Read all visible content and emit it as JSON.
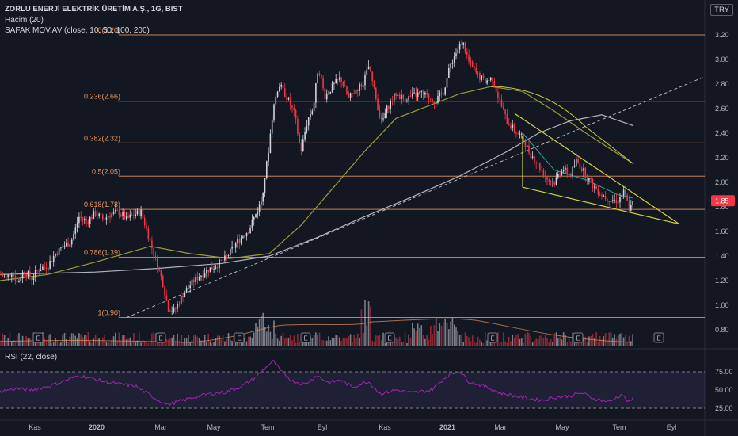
{
  "header": {
    "symbol": "ZORLU ENERJİ ELEKTRİK ÜRETİM A.Ş., 1G, BIST",
    "volume": "Hacim (20)",
    "ma": "SAFAK  MOV.AV (close, 10, 50, 100, 200)"
  },
  "currency": "TRY",
  "rsi_label": "RSI (22, close)",
  "colors": {
    "background": "#131722",
    "up": "#d1d4dc",
    "down": "#f23645",
    "fib": "#e8935c",
    "ma50": "#9b9b3a",
    "ma200": "#b2b5be",
    "ma100_projection": "#c8cc3a",
    "rsi": "#9c27b0",
    "wedge": "#d4d43a",
    "trend": "#b2b5be",
    "price_badge": "#f23645"
  },
  "chart_data": [
    {
      "type": "candlestick",
      "title": "ZORLU ENERJİ ELEKTRİK ÜRETİM A.Ş., 1G, BIST",
      "x_ticks": [
        "Kas",
        "2020",
        "Mar",
        "May",
        "Tem",
        "Eyl",
        "Kas",
        "2021",
        "Mar",
        "May",
        "Tem",
        "Eyl"
      ],
      "y_ticks": [
        "3.20",
        "3.00",
        "2.80",
        "2.60",
        "2.40",
        "2.20",
        "2.00",
        "1.80",
        "1.60",
        "1.40",
        "1.20",
        "1.00",
        "0.80"
      ],
      "ylim": [
        0.72,
        3.28
      ],
      "last_price": "1.85",
      "fib_levels": [
        {
          "label": "0(3.20)",
          "value": 3.2
        },
        {
          "label": "0.236(2.66)",
          "value": 2.66
        },
        {
          "label": "0.382(2.32)",
          "value": 2.32
        },
        {
          "label": "0.5(2.05)",
          "value": 2.05
        },
        {
          "label": "0.618(1.78)",
          "value": 1.78
        },
        {
          "label": "0.786(1.39)",
          "value": 1.39
        },
        {
          "label": "1(0.90)",
          "value": 0.9
        }
      ],
      "price_path": [
        [
          0,
          1.25
        ],
        [
          8,
          1.22
        ],
        [
          15,
          1.27
        ],
        [
          22,
          1.18
        ],
        [
          30,
          1.28
        ],
        [
          40,
          1.22
        ],
        [
          50,
          1.3
        ],
        [
          60,
          1.32
        ],
        [
          70,
          1.42
        ],
        [
          80,
          1.48
        ],
        [
          90,
          1.52
        ],
        [
          100,
          1.72
        ],
        [
          110,
          1.68
        ],
        [
          120,
          1.75
        ],
        [
          130,
          1.7
        ],
        [
          140,
          1.74
        ],
        [
          150,
          1.76
        ],
        [
          160,
          1.7
        ],
        [
          170,
          1.74
        ],
        [
          178,
          1.76
        ],
        [
          185,
          1.62
        ],
        [
          195,
          1.4
        ],
        [
          205,
          1.2
        ],
        [
          212,
          0.98
        ],
        [
          220,
          0.95
        ],
        [
          232,
          1.1
        ],
        [
          245,
          1.2
        ],
        [
          260,
          1.28
        ],
        [
          272,
          1.32
        ],
        [
          285,
          1.38
        ],
        [
          300,
          1.52
        ],
        [
          315,
          1.62
        ],
        [
          330,
          1.85
        ],
        [
          338,
          2.2
        ],
        [
          345,
          2.6
        ],
        [
          352,
          2.8
        ],
        [
          362,
          2.7
        ],
        [
          372,
          2.55
        ],
        [
          380,
          2.25
        ],
        [
          388,
          2.5
        ],
        [
          396,
          2.62
        ],
        [
          402,
          2.95
        ],
        [
          410,
          2.7
        ],
        [
          420,
          2.78
        ],
        [
          430,
          2.85
        ],
        [
          440,
          2.68
        ],
        [
          450,
          2.76
        ],
        [
          458,
          2.8
        ],
        [
          466,
          2.95
        ],
        [
          474,
          2.7
        ],
        [
          482,
          2.48
        ],
        [
          490,
          2.62
        ],
        [
          500,
          2.72
        ],
        [
          510,
          2.68
        ],
        [
          520,
          2.7
        ],
        [
          530,
          2.72
        ],
        [
          540,
          2.7
        ],
        [
          550,
          2.66
        ],
        [
          560,
          2.74
        ],
        [
          570,
          2.98
        ],
        [
          578,
          3.08
        ],
        [
          584,
          3.15
        ],
        [
          592,
          2.98
        ],
        [
          602,
          2.88
        ],
        [
          612,
          2.82
        ],
        [
          622,
          2.85
        ],
        [
          630,
          2.68
        ],
        [
          640,
          2.5
        ],
        [
          650,
          2.42
        ],
        [
          660,
          2.36
        ],
        [
          668,
          2.25
        ],
        [
          676,
          2.18
        ],
        [
          684,
          2.1
        ],
        [
          692,
          2.02
        ],
        [
          700,
          2.0
        ],
        [
          710,
          2.12
        ],
        [
          720,
          2.05
        ],
        [
          728,
          2.18
        ],
        [
          736,
          2.1
        ],
        [
          744,
          2.02
        ],
        [
          752,
          1.95
        ],
        [
          760,
          1.9
        ],
        [
          770,
          1.86
        ],
        [
          780,
          1.85
        ],
        [
          788,
          1.92
        ],
        [
          795,
          1.78
        ],
        [
          801,
          1.85
        ]
      ],
      "ma50_path": [
        [
          0,
          1.2
        ],
        [
          60,
          1.25
        ],
        [
          120,
          1.35
        ],
        [
          190,
          1.48
        ],
        [
          240,
          1.42
        ],
        [
          290,
          1.38
        ],
        [
          340,
          1.42
        ],
        [
          380,
          1.65
        ],
        [
          420,
          1.95
        ],
        [
          460,
          2.25
        ],
        [
          500,
          2.52
        ],
        [
          540,
          2.62
        ],
        [
          580,
          2.72
        ],
        [
          620,
          2.78
        ],
        [
          660,
          2.74
        ],
        [
          700,
          2.58
        ],
        [
          740,
          2.4
        ],
        [
          800,
          2.15
        ]
      ],
      "ma200_path": [
        [
          0,
          1.25
        ],
        [
          120,
          1.27
        ],
        [
          200,
          1.3
        ],
        [
          280,
          1.34
        ],
        [
          340,
          1.4
        ],
        [
          400,
          1.55
        ],
        [
          460,
          1.72
        ],
        [
          520,
          1.88
        ],
        [
          580,
          2.05
        ],
        [
          640,
          2.25
        ],
        [
          680,
          2.4
        ],
        [
          720,
          2.5
        ],
        [
          760,
          2.55
        ],
        [
          800,
          2.46
        ]
      ],
      "ma10_path": [
        [
          660,
          2.4
        ],
        [
          700,
          2.1
        ],
        [
          740,
          2.02
        ],
        [
          780,
          1.9
        ],
        [
          800,
          1.87
        ]
      ]
    },
    {
      "type": "bar",
      "title": "Hacim (20)",
      "note": "volume bars under price panel"
    },
    {
      "type": "line",
      "title": "RSI (22, close)",
      "y_ticks": [
        "75.00",
        "50.00",
        "25.00"
      ],
      "ylim": [
        15,
        95
      ],
      "values": [
        [
          0,
          48
        ],
        [
          20,
          52
        ],
        [
          40,
          50
        ],
        [
          60,
          55
        ],
        [
          80,
          62
        ],
        [
          100,
          70
        ],
        [
          115,
          66
        ],
        [
          130,
          62
        ],
        [
          150,
          58
        ],
        [
          170,
          56
        ],
        [
          185,
          46
        ],
        [
          200,
          36
        ],
        [
          212,
          30
        ],
        [
          225,
          34
        ],
        [
          245,
          40
        ],
        [
          265,
          45
        ],
        [
          285,
          47
        ],
        [
          305,
          55
        ],
        [
          320,
          65
        ],
        [
          335,
          80
        ],
        [
          345,
          90
        ],
        [
          355,
          75
        ],
        [
          370,
          62
        ],
        [
          385,
          58
        ],
        [
          400,
          70
        ],
        [
          415,
          60
        ],
        [
          430,
          64
        ],
        [
          445,
          54
        ],
        [
          465,
          62
        ],
        [
          480,
          45
        ],
        [
          500,
          50
        ],
        [
          520,
          46
        ],
        [
          545,
          50
        ],
        [
          565,
          70
        ],
        [
          580,
          76
        ],
        [
          592,
          62
        ],
        [
          612,
          55
        ],
        [
          632,
          46
        ],
        [
          650,
          42
        ],
        [
          668,
          38
        ],
        [
          685,
          36
        ],
        [
          700,
          40
        ],
        [
          720,
          42
        ],
        [
          735,
          46
        ],
        [
          750,
          38
        ],
        [
          770,
          34
        ],
        [
          785,
          44
        ],
        [
          795,
          32
        ],
        [
          801,
          42
        ]
      ]
    }
  ]
}
